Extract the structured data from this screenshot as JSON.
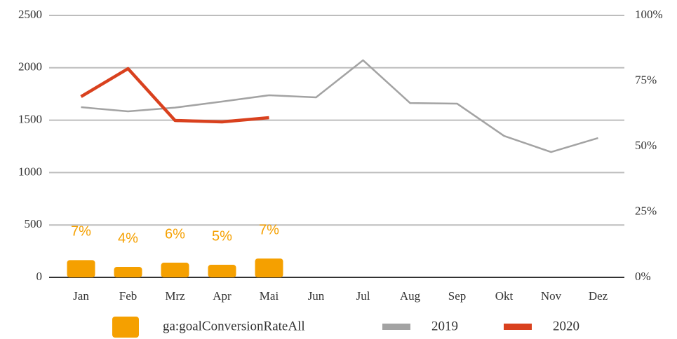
{
  "chart_data": {
    "type": "line",
    "categories": [
      "Jan",
      "Feb",
      "Mrz",
      "Apr",
      "Mai",
      "Jun",
      "Jul",
      "Aug",
      "Sep",
      "Okt",
      "Nov",
      "Dez"
    ],
    "ylim": [
      0,
      2500
    ],
    "yticks": [
      0,
      500,
      1000,
      1500,
      2000,
      2500
    ],
    "y2lim": [
      0,
      100
    ],
    "y2ticks": [
      {
        "value": 0,
        "label": "0%"
      },
      {
        "value": 25,
        "label": "25%"
      },
      {
        "value": 50,
        "label": "50%"
      },
      {
        "value": 75,
        "label": "75%"
      },
      {
        "value": 100,
        "label": "100%"
      }
    ],
    "grid": true,
    "legend": "bottom",
    "series": [
      {
        "name": "ga:goalConversionRateAll",
        "type": "bar",
        "axis": "y2",
        "color": "#f5a000",
        "values": [
          6.6,
          4.0,
          5.6,
          4.8,
          7.2,
          null,
          null,
          null,
          null,
          null,
          null,
          null
        ],
        "value_labels": [
          "7%",
          "4%",
          "6%",
          "5%",
          "7%",
          null,
          null,
          null,
          null,
          null,
          null,
          null
        ]
      },
      {
        "name": "2019",
        "type": "line",
        "color": "#a3a3a3",
        "values": [
          1624,
          1584,
          1620,
          1678,
          1738,
          1718,
          2072,
          1664,
          1658,
          1350,
          1196,
          1330
        ]
      },
      {
        "name": "2020",
        "type": "line",
        "color": "#d9411e",
        "values": [
          1725,
          1992,
          1497,
          1484,
          1524,
          null,
          null,
          null,
          null,
          null,
          null,
          null
        ]
      }
    ]
  }
}
